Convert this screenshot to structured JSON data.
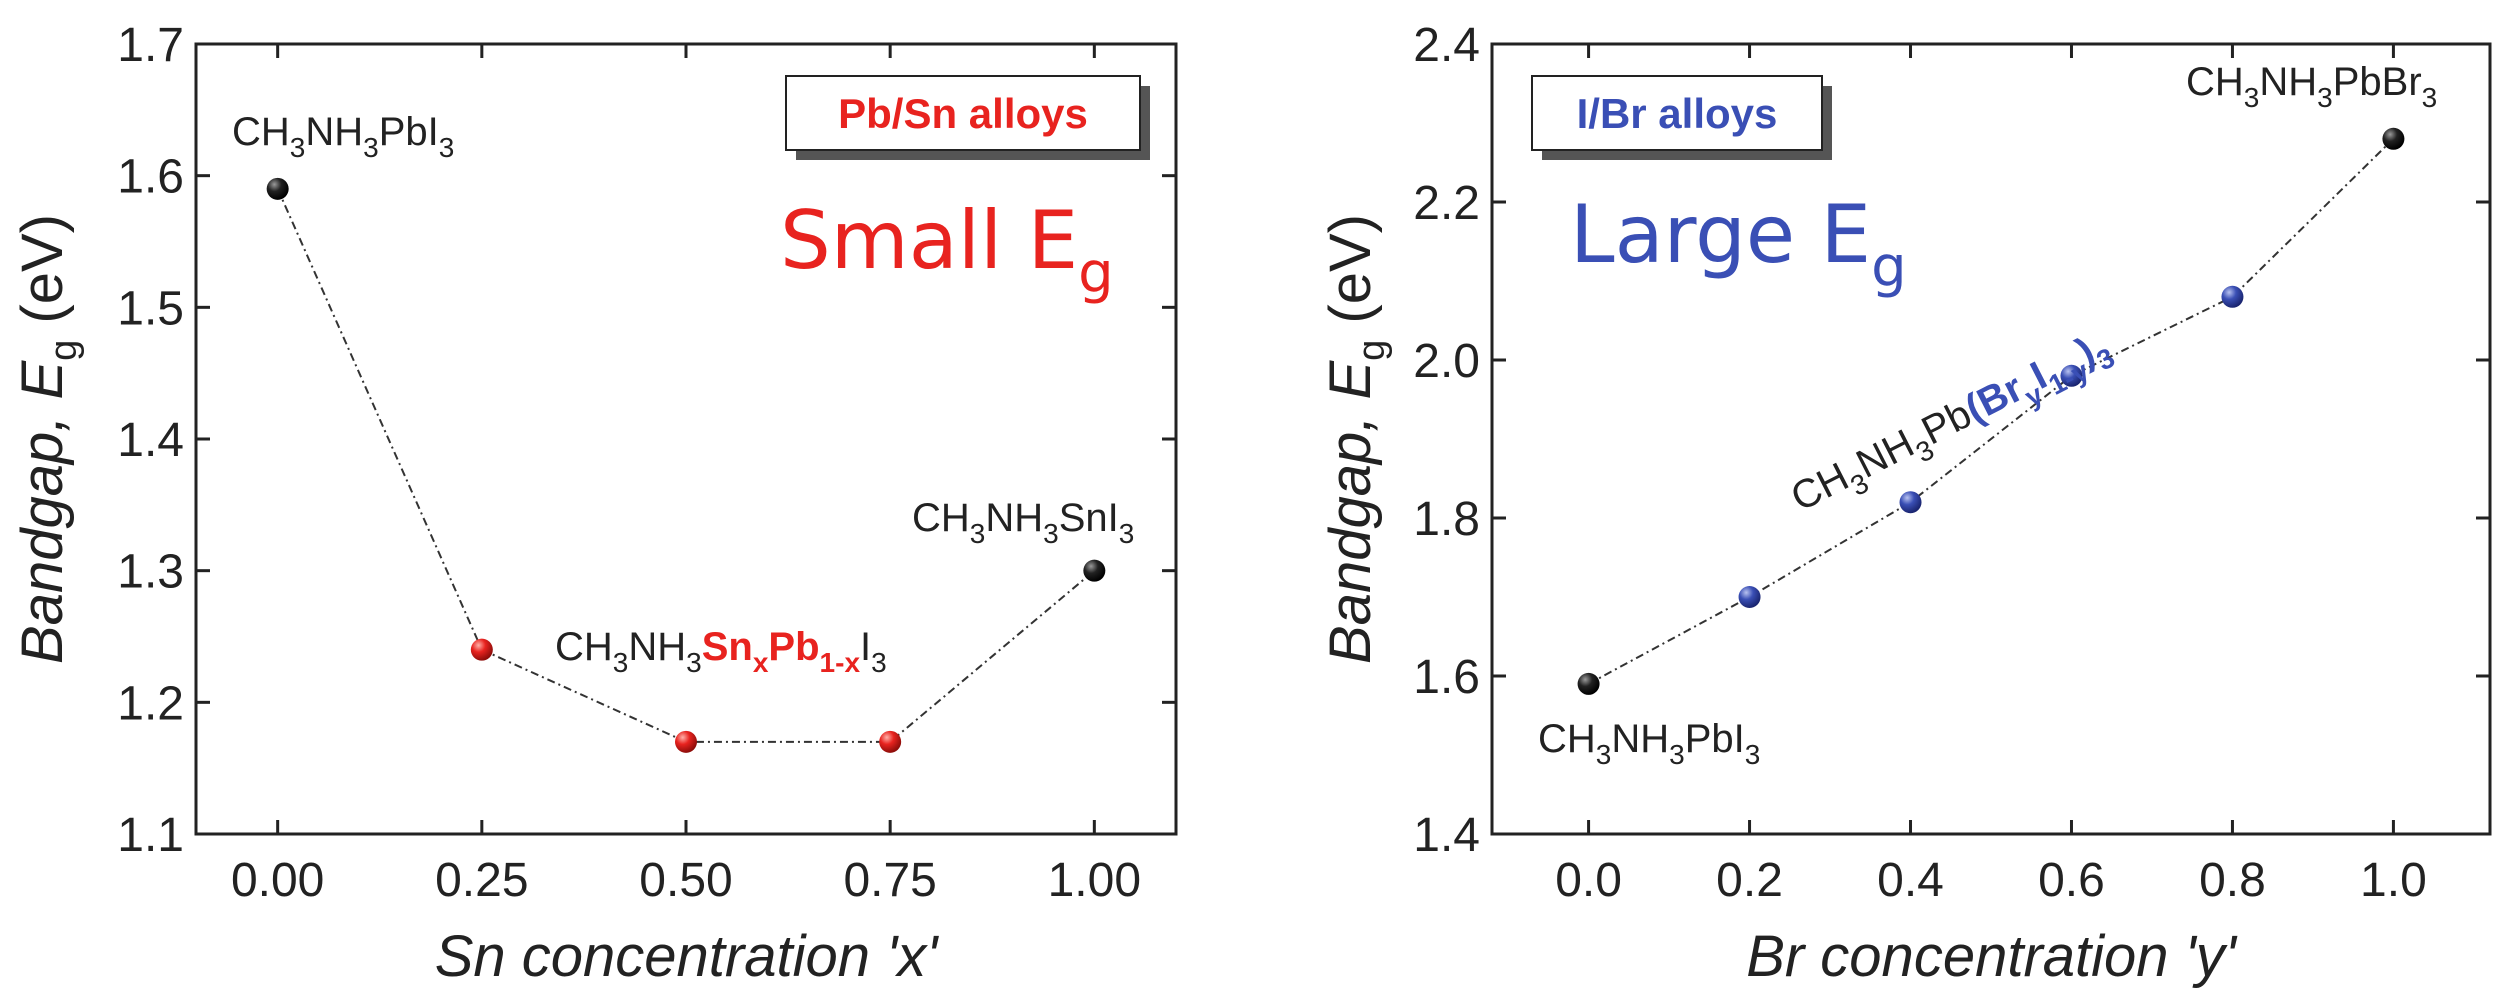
{
  "chart_data": [
    {
      "type": "line",
      "xlabel_prefix": "Sn concentration '",
      "xlabel_var": "x",
      "xlabel_suffix": "'",
      "ylabel_main": "Bandgap, ",
      "ylabel_sym": "E",
      "ylabel_sub": "g",
      "ylabel_unit": " (eV)",
      "xlim": [
        -0.1,
        1.1
      ],
      "ylim": [
        1.1,
        1.7
      ],
      "x_ticks": [
        0.0,
        0.25,
        0.5,
        0.75,
        1.0
      ],
      "x_tick_labels": [
        "0.00",
        "0.25",
        "0.50",
        "0.75",
        "1.00"
      ],
      "y_ticks": [
        1.1,
        1.2,
        1.3,
        1.4,
        1.5,
        1.6,
        1.7
      ],
      "y_tick_labels": [
        "1.1",
        "1.2",
        "1.3",
        "1.4",
        "1.5",
        "1.6",
        "1.7"
      ],
      "series": [
        {
          "name": "CH3NH3SnxPb1-xI3",
          "x": [
            0.0,
            0.25,
            0.5,
            0.75,
            1.0
          ],
          "values": [
            1.59,
            1.24,
            1.17,
            1.17,
            1.3
          ],
          "point_colors": [
            "#111111",
            "#e8231f",
            "#e8231f",
            "#e8231f",
            "#111111"
          ]
        }
      ],
      "badge": "Pb/Sn alloys",
      "big_label_main": "Small E",
      "big_label_sub": "g",
      "annotations": {
        "left_end": [
          "CH",
          "3",
          "NH",
          "3",
          "PbI",
          "3"
        ],
        "right_end": [
          "CH",
          "3",
          "NH",
          "3",
          "SnI",
          "3"
        ],
        "alloy": [
          "CH",
          "3",
          "NH",
          "3",
          "Sn",
          "x",
          "Pb",
          "1-x",
          "I",
          "3"
        ]
      },
      "accent_color": "#e8231f"
    },
    {
      "type": "line",
      "xlabel_prefix": "Br concentration '",
      "xlabel_var": "y",
      "xlabel_suffix": "'",
      "ylabel_main": "Bandgap, ",
      "ylabel_sym": "E",
      "ylabel_sub": "g",
      "ylabel_unit": " (eV)",
      "xlim": [
        -0.12,
        1.12
      ],
      "ylim": [
        1.4,
        2.4
      ],
      "x_ticks": [
        0.0,
        0.2,
        0.4,
        0.6,
        0.8,
        1.0
      ],
      "x_tick_labels": [
        "0.0",
        "0.2",
        "0.4",
        "0.6",
        "0.8",
        "1.0"
      ],
      "y_ticks": [
        1.4,
        1.6,
        1.8,
        2.0,
        2.2,
        2.4
      ],
      "y_tick_labels": [
        "1.4",
        "1.6",
        "1.8",
        "2.0",
        "2.2",
        "2.4"
      ],
      "series": [
        {
          "name": "CH3NH3Pb(BryI1-y)3",
          "x": [
            0.0,
            0.2,
            0.4,
            0.6,
            0.8,
            1.0
          ],
          "values": [
            1.59,
            1.7,
            1.82,
            1.98,
            2.08,
            2.28
          ],
          "point_colors": [
            "#111111",
            "#3a4fb5",
            "#3a4fb5",
            "#3a4fb5",
            "#3a4fb5",
            "#111111"
          ]
        }
      ],
      "badge": "I/Br alloys",
      "big_label_main": "Large E",
      "big_label_sub": "g",
      "annotations": {
        "left_end": [
          "CH",
          "3",
          "NH",
          "3",
          "PbI",
          "3"
        ],
        "right_end": [
          "CH",
          "3",
          "NH",
          "3",
          "PbBr",
          "3"
        ],
        "alloy": [
          "CH",
          "3",
          "NH",
          "3",
          "Pb",
          "(Br",
          "y",
          "I",
          "1-y",
          ")",
          "3"
        ]
      },
      "accent_color": "#3a4fb5"
    }
  ]
}
